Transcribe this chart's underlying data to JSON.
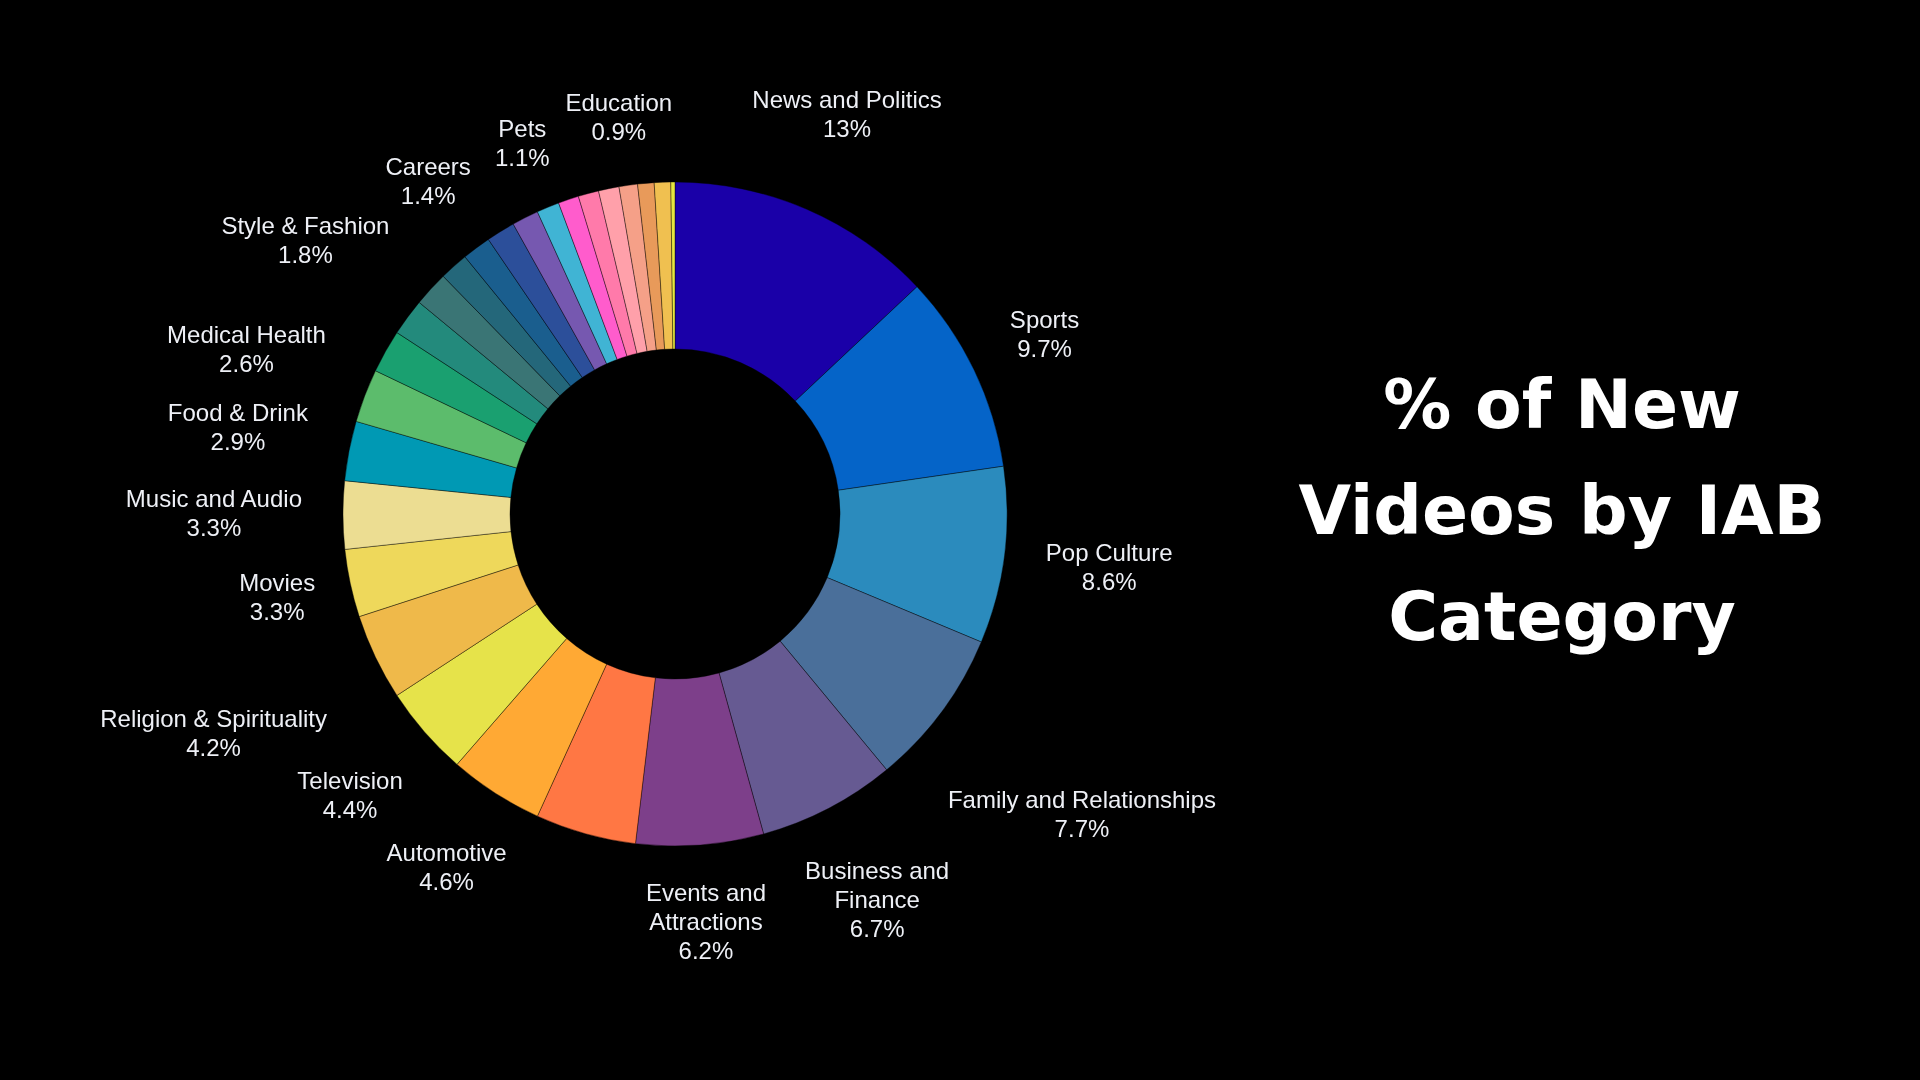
{
  "chart_data": {
    "type": "donut",
    "title": "% of New Videos by IAB Category",
    "categories": [
      "News and Politics",
      "Sports",
      "Pop Culture",
      "Family and Relationships",
      "Business and Finance",
      "Events and Attractions",
      null,
      "Automotive",
      "Television",
      "Religion & Spirituality",
      "Movies",
      "Music and Audio",
      "Food & Drink",
      "Medical Health",
      null,
      "Style & Fashion",
      null,
      null,
      "Careers",
      null,
      null,
      "Pets",
      null,
      null,
      null,
      "Education",
      null,
      null,
      null
    ],
    "values": [
      13,
      9.7,
      8.6,
      7.7,
      6.7,
      6.2,
      4.9,
      4.6,
      4.4,
      4.2,
      3.3,
      3.3,
      2.9,
      2.6,
      2.1,
      1.8,
      1.7,
      1.4,
      1.4,
      1.4,
      1.3,
      1.1,
      1.0,
      1.0,
      1.0,
      0.9,
      0.8,
      0.8,
      0.2
    ],
    "value_labels": [
      "13%",
      "9.7%",
      "8.6%",
      "7.7%",
      "6.7%",
      "6.2%",
      null,
      "4.6%",
      "4.4%",
      "4.2%",
      "3.3%",
      "3.3%",
      "2.9%",
      "2.6%",
      null,
      "1.8%",
      null,
      null,
      "1.4%",
      null,
      null,
      "1.1%",
      null,
      null,
      null,
      "0.9%",
      null,
      null,
      null
    ],
    "colors": [
      "#1a00a8",
      "#0564c8",
      "#2b8bbd",
      "#4a6f9a",
      "#665a92",
      "#7d3f8a",
      "#ff7744",
      "#ffa934",
      "#e6e34a",
      "#efb94a",
      "#eed85b",
      "#ecdd92",
      "#0099b4",
      "#5cbc6c",
      "#1aa070",
      "#238a7c",
      "#3a7575",
      "#24677a",
      "#1a5e8e",
      "#2c4f9a",
      "#7658b0",
      "#40b4d4",
      "#ff5ccc",
      "#ff7aaa",
      "#ffa0aa",
      "#f5a088",
      "#e89a5a",
      "#f0c050",
      "#e6e640"
    ]
  }
}
